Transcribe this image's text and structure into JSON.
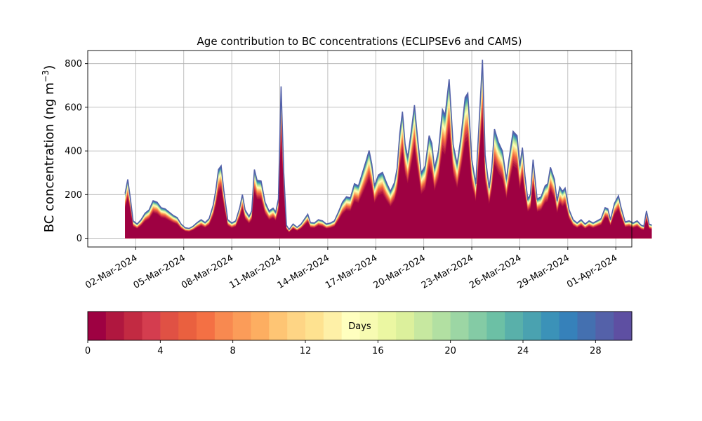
{
  "chart_data": {
    "type": "area",
    "title": "Age contribution to BC concentrations (ECLIPSEv6 and CAMS)",
    "xlabel": "",
    "ylabel": "BC concentration (ng m",
    "ylabel_sup": "−3",
    "ylabel_close": ")",
    "xlim": [
      "2024-02-28T00:00",
      "2024-04-02T00:00"
    ],
    "ylim": [
      -40,
      860
    ],
    "yticks": [
      0,
      200,
      400,
      600,
      800
    ],
    "xticks": [
      "2024-03-02",
      "2024-03-05",
      "2024-03-08",
      "2024-03-11",
      "2024-03-14",
      "2024-03-17",
      "2024-03-20",
      "2024-03-23",
      "2024-03-26",
      "2024-03-29",
      "2024-04-01"
    ],
    "xtick_labels": [
      "02-Mar-2024",
      "05-Mar-2024",
      "08-Mar-2024",
      "11-Mar-2024",
      "14-Mar-2024",
      "17-Mar-2024",
      "20-Mar-2024",
      "23-Mar-2024",
      "26-Mar-2024",
      "29-Mar-2024",
      "01-Apr-2024"
    ],
    "grid": true,
    "colorbar": {
      "label": "Days",
      "min": 0,
      "max": 30,
      "ticks": [
        0,
        4,
        8,
        12,
        16,
        20,
        24,
        28
      ],
      "colormap": "Spectral",
      "colors": [
        "#9e0142",
        "#b0173f",
        "#c22a42",
        "#d43d4f",
        "#e05144",
        "#ea603f",
        "#f47044",
        "#f88950",
        "#fb9c59",
        "#fdae61",
        "#fec574",
        "#fed585",
        "#fee290",
        "#fef0a7",
        "#ffffbf",
        "#f7fbb2",
        "#ebf7a2",
        "#dcf09c",
        "#c7e8a0",
        "#b2e0a2",
        "#9cd6a4",
        "#84cba5",
        "#6cc0a5",
        "#59b0aa",
        "#4aa2b0",
        "#3b92b8",
        "#3681ba",
        "#4470b0",
        "#5461a9",
        "#5e4fa2"
      ]
    },
    "total_series": {
      "name": "",
      "points": [
        [
          "2024-03-01T08:00",
          205
        ],
        [
          "2024-03-01T12:00",
          270
        ],
        [
          "2024-03-01T16:00",
          180
        ],
        [
          "2024-03-01T20:00",
          80
        ],
        [
          "2024-03-02T02:00",
          65
        ],
        [
          "2024-03-02T08:00",
          85
        ],
        [
          "2024-03-02T14:00",
          115
        ],
        [
          "2024-03-02T20:00",
          130
        ],
        [
          "2024-03-03T02:00",
          172
        ],
        [
          "2024-03-03T08:00",
          165
        ],
        [
          "2024-03-03T14:00",
          140
        ],
        [
          "2024-03-03T20:00",
          135
        ],
        [
          "2024-03-04T02:00",
          120
        ],
        [
          "2024-03-04T08:00",
          105
        ],
        [
          "2024-03-04T14:00",
          95
        ],
        [
          "2024-03-04T20:00",
          65
        ],
        [
          "2024-03-05T02:00",
          48
        ],
        [
          "2024-03-05T08:00",
          45
        ],
        [
          "2024-03-05T14:00",
          55
        ],
        [
          "2024-03-05T20:00",
          72
        ],
        [
          "2024-03-06T02:00",
          85
        ],
        [
          "2024-03-06T08:00",
          72
        ],
        [
          "2024-03-06T14:00",
          90
        ],
        [
          "2024-03-06T20:00",
          150
        ],
        [
          "2024-03-07T00:00",
          220
        ],
        [
          "2024-03-07T04:00",
          315
        ],
        [
          "2024-03-07T08:00",
          332
        ],
        [
          "2024-03-07T12:00",
          220
        ],
        [
          "2024-03-07T18:00",
          85
        ],
        [
          "2024-03-08T00:00",
          70
        ],
        [
          "2024-03-08T06:00",
          80
        ],
        [
          "2024-03-08T12:00",
          140
        ],
        [
          "2024-03-08T16:00",
          200
        ],
        [
          "2024-03-08T20:00",
          130
        ],
        [
          "2024-03-09T02:00",
          100
        ],
        [
          "2024-03-09T06:00",
          125
        ],
        [
          "2024-03-09T10:00",
          315
        ],
        [
          "2024-03-09T14:00",
          265
        ],
        [
          "2024-03-09T20:00",
          262
        ],
        [
          "2024-03-10T02:00",
          165
        ],
        [
          "2024-03-10T08:00",
          125
        ],
        [
          "2024-03-10T14:00",
          138
        ],
        [
          "2024-03-10T18:00",
          120
        ],
        [
          "2024-03-10T22:00",
          180
        ],
        [
          "2024-03-11T02:00",
          695
        ],
        [
          "2024-03-11T06:00",
          300
        ],
        [
          "2024-03-11T10:00",
          60
        ],
        [
          "2024-03-11T14:00",
          40
        ],
        [
          "2024-03-11T20:00",
          65
        ],
        [
          "2024-03-12T02:00",
          50
        ],
        [
          "2024-03-12T08:00",
          65
        ],
        [
          "2024-03-12T14:00",
          92
        ],
        [
          "2024-03-12T18:00",
          110
        ],
        [
          "2024-03-12T22:00",
          72
        ],
        [
          "2024-03-13T04:00",
          70
        ],
        [
          "2024-03-13T10:00",
          85
        ],
        [
          "2024-03-13T16:00",
          80
        ],
        [
          "2024-03-13T22:00",
          65
        ],
        [
          "2024-03-14T04:00",
          70
        ],
        [
          "2024-03-14T10:00",
          80
        ],
        [
          "2024-03-14T16:00",
          120
        ],
        [
          "2024-03-14T22:00",
          165
        ],
        [
          "2024-03-15T04:00",
          190
        ],
        [
          "2024-03-15T10:00",
          185
        ],
        [
          "2024-03-15T16:00",
          250
        ],
        [
          "2024-03-15T22:00",
          240
        ],
        [
          "2024-03-16T04:00",
          300
        ],
        [
          "2024-03-16T10:00",
          360
        ],
        [
          "2024-03-16T14:00",
          402
        ],
        [
          "2024-03-16T18:00",
          340
        ],
        [
          "2024-03-16T22:00",
          240
        ],
        [
          "2024-03-17T04:00",
          290
        ],
        [
          "2024-03-17T10:00",
          302
        ],
        [
          "2024-03-17T16:00",
          255
        ],
        [
          "2024-03-17T22:00",
          215
        ],
        [
          "2024-03-18T04:00",
          255
        ],
        [
          "2024-03-18T08:00",
          320
        ],
        [
          "2024-03-18T12:00",
          480
        ],
        [
          "2024-03-18T16:00",
          580
        ],
        [
          "2024-03-18T20:00",
          430
        ],
        [
          "2024-03-19T00:00",
          370
        ],
        [
          "2024-03-19T06:00",
          510
        ],
        [
          "2024-03-19T10:00",
          610
        ],
        [
          "2024-03-19T14:00",
          480
        ],
        [
          "2024-03-19T20:00",
          300
        ],
        [
          "2024-03-20T02:00",
          330
        ],
        [
          "2024-03-20T08:00",
          470
        ],
        [
          "2024-03-20T12:00",
          435
        ],
        [
          "2024-03-20T16:00",
          320
        ],
        [
          "2024-03-20T22:00",
          400
        ],
        [
          "2024-03-21T04:00",
          590
        ],
        [
          "2024-03-21T08:00",
          565
        ],
        [
          "2024-03-21T14:00",
          728
        ],
        [
          "2024-03-21T20:00",
          430
        ],
        [
          "2024-03-22T02:00",
          340
        ],
        [
          "2024-03-22T08:00",
          470
        ],
        [
          "2024-03-22T14:00",
          645
        ],
        [
          "2024-03-22T18:00",
          665
        ],
        [
          "2024-03-23T00:00",
          360
        ],
        [
          "2024-03-23T06:00",
          250
        ],
        [
          "2024-03-23T12:00",
          590
        ],
        [
          "2024-03-23T16:00",
          818
        ],
        [
          "2024-03-23T20:00",
          380
        ],
        [
          "2024-03-24T02:00",
          230
        ],
        [
          "2024-03-24T06:00",
          325
        ],
        [
          "2024-03-24T10:00",
          500
        ],
        [
          "2024-03-24T16:00",
          440
        ],
        [
          "2024-03-24T22:00",
          400
        ],
        [
          "2024-03-25T04:00",
          270
        ],
        [
          "2024-03-25T08:00",
          365
        ],
        [
          "2024-03-25T14:00",
          490
        ],
        [
          "2024-03-25T20:00",
          470
        ],
        [
          "2024-03-26T00:00",
          330
        ],
        [
          "2024-03-26T04:00",
          415
        ],
        [
          "2024-03-26T08:00",
          280
        ],
        [
          "2024-03-26T12:00",
          180
        ],
        [
          "2024-03-26T16:00",
          200
        ],
        [
          "2024-03-26T20:00",
          360
        ],
        [
          "2024-03-27T02:00",
          180
        ],
        [
          "2024-03-27T08:00",
          190
        ],
        [
          "2024-03-27T14:00",
          240
        ],
        [
          "2024-03-27T18:00",
          250
        ],
        [
          "2024-03-27T22:00",
          325
        ],
        [
          "2024-03-28T04:00",
          270
        ],
        [
          "2024-03-28T08:00",
          170
        ],
        [
          "2024-03-28T12:00",
          235
        ],
        [
          "2024-03-28T16:00",
          215
        ],
        [
          "2024-03-28T20:00",
          230
        ],
        [
          "2024-03-29T02:00",
          130
        ],
        [
          "2024-03-29T08:00",
          85
        ],
        [
          "2024-03-29T14:00",
          70
        ],
        [
          "2024-03-29T20:00",
          85
        ],
        [
          "2024-03-30T02:00",
          65
        ],
        [
          "2024-03-30T08:00",
          80
        ],
        [
          "2024-03-30T14:00",
          70
        ],
        [
          "2024-03-30T20:00",
          80
        ],
        [
          "2024-03-31T02:00",
          90
        ],
        [
          "2024-03-31T08:00",
          140
        ],
        [
          "2024-03-31T12:00",
          135
        ],
        [
          "2024-03-31T16:00",
          85
        ],
        [
          "2024-03-31T22:00",
          160
        ],
        [
          "2024-04-01T04:00",
          195
        ],
        [
          "2024-04-01T08:00",
          140
        ],
        [
          "2024-04-01T14:00",
          75
        ],
        [
          "2024-04-01T20:00",
          80
        ],
        [
          "2024-04-02T02:00",
          70
        ],
        [
          "2024-04-02T08:00",
          80
        ],
        [
          "2024-04-02T14:00",
          60
        ],
        [
          "2024-04-02T18:00",
          55
        ],
        [
          "2024-04-02T22:00",
          125
        ],
        [
          "2024-04-03T02:00",
          65
        ],
        [
          "2024-04-03T06:00",
          60
        ]
      ]
    },
    "notes": ""
  }
}
